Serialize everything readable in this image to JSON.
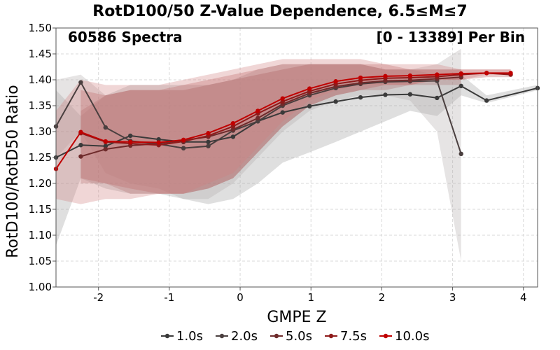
{
  "chart_data": {
    "type": "line",
    "title": "RotD100/50 Z-Value Dependence, 6.5≤M≤7",
    "annotation_left": "60586 Spectra",
    "annotation_right": "[0 - 13389] Per Bin",
    "xlabel": "GMPE Z",
    "ylabel": "RotD100/RotD50 Ratio",
    "xlim": [
      -2.6,
      4.2
    ],
    "ylim": [
      1.0,
      1.5
    ],
    "xticks": [
      -2,
      -1,
      0,
      1,
      2,
      3,
      4
    ],
    "yticks": [
      1.0,
      1.05,
      1.1,
      1.15,
      1.2,
      1.25,
      1.3,
      1.35,
      1.4,
      1.45,
      1.5
    ],
    "grid": true,
    "legend_position": "bottom",
    "series": [
      {
        "name": "1.0s",
        "color": "#3a3a3a",
        "band_color": "#9a9a9a",
        "x": [
          -2.6,
          -2.25,
          -1.9,
          -1.55,
          -1.15,
          -0.8,
          -0.45,
          -0.1,
          0.25,
          0.6,
          0.98,
          1.35,
          1.7,
          2.05,
          2.4,
          2.78,
          3.12,
          3.48,
          4.2
        ],
        "values": [
          1.25,
          1.274,
          1.272,
          1.292,
          1.285,
          1.28,
          1.28,
          1.29,
          1.32,
          1.337,
          1.349,
          1.358,
          1.366,
          1.371,
          1.372,
          1.365,
          1.388,
          1.36,
          1.384
        ],
        "lower": [
          1.08,
          1.21,
          1.19,
          1.18,
          1.18,
          1.17,
          1.16,
          1.17,
          1.2,
          1.24,
          1.26,
          1.28,
          1.3,
          1.32,
          1.34,
          1.33,
          1.37,
          1.355,
          1.38
        ],
        "upper": [
          1.38,
          1.33,
          1.37,
          1.39,
          1.39,
          1.39,
          1.39,
          1.4,
          1.42,
          1.43,
          1.43,
          1.43,
          1.43,
          1.42,
          1.42,
          1.41,
          1.41,
          1.37,
          1.39
        ]
      },
      {
        "name": "2.0s",
        "color": "#4a3f3f",
        "band_color": "#b0aaaa",
        "x": [
          -2.6,
          -2.25,
          -1.9,
          -1.55,
          -1.15,
          -0.8,
          -0.45,
          -0.1,
          0.25,
          0.6,
          0.98,
          1.35,
          1.7,
          2.05,
          2.4,
          2.78,
          3.12
        ],
        "values": [
          1.31,
          1.395,
          1.308,
          1.282,
          1.276,
          1.268,
          1.272,
          1.302,
          1.32,
          1.35,
          1.37,
          1.384,
          1.392,
          1.396,
          1.397,
          1.398,
          1.257
        ],
        "lower": [
          1.25,
          1.3,
          1.22,
          1.2,
          1.19,
          1.17,
          1.17,
          1.2,
          1.25,
          1.3,
          1.34,
          1.36,
          1.37,
          1.37,
          1.36,
          1.3,
          1.05
        ],
        "upper": [
          1.4,
          1.41,
          1.37,
          1.38,
          1.38,
          1.38,
          1.39,
          1.4,
          1.41,
          1.42,
          1.43,
          1.43,
          1.43,
          1.42,
          1.42,
          1.43,
          1.46
        ]
      },
      {
        "name": "5.0s",
        "color": "#6e2b2b",
        "band_color": "#a86c6c",
        "x": [
          -2.25,
          -1.9,
          -1.55,
          -1.15,
          -0.8,
          -0.45,
          -0.1,
          0.25,
          0.6,
          0.98,
          1.35,
          1.7,
          2.05,
          2.4,
          2.78,
          3.12
        ],
        "values": [
          1.252,
          1.266,
          1.273,
          1.277,
          1.283,
          1.29,
          1.304,
          1.326,
          1.353,
          1.374,
          1.387,
          1.394,
          1.398,
          1.399,
          1.402,
          1.405
        ],
        "lower": [
          1.2,
          1.2,
          1.18,
          1.18,
          1.18,
          1.19,
          1.21,
          1.26,
          1.31,
          1.35,
          1.37,
          1.38,
          1.38,
          1.39,
          1.39,
          1.39
        ],
        "upper": [
          1.34,
          1.37,
          1.38,
          1.38,
          1.38,
          1.39,
          1.4,
          1.41,
          1.42,
          1.43,
          1.43,
          1.43,
          1.42,
          1.42,
          1.42,
          1.42
        ]
      },
      {
        "name": "7.5s",
        "color": "#8e1a1a",
        "band_color": "#b55a5a",
        "x": [
          -2.25,
          -1.9,
          -1.55,
          -1.15,
          -0.8,
          -0.45,
          -0.1,
          0.25,
          0.6,
          0.98,
          1.35,
          1.7,
          2.05,
          2.4,
          2.78,
          3.12,
          3.48,
          3.82
        ],
        "values": [
          1.297,
          1.28,
          1.277,
          1.274,
          1.281,
          1.292,
          1.31,
          1.335,
          1.358,
          1.378,
          1.392,
          1.399,
          1.403,
          1.404,
          1.406,
          1.41,
          1.413,
          1.41
        ],
        "lower": [
          1.21,
          1.2,
          1.19,
          1.18,
          1.18,
          1.19,
          1.21,
          1.26,
          1.31,
          1.35,
          1.37,
          1.38,
          1.39,
          1.39,
          1.4,
          1.4,
          1.405,
          1.405
        ],
        "upper": [
          1.38,
          1.37,
          1.38,
          1.38,
          1.39,
          1.4,
          1.41,
          1.42,
          1.43,
          1.43,
          1.43,
          1.43,
          1.43,
          1.42,
          1.42,
          1.42,
          1.42,
          1.42
        ]
      },
      {
        "name": "10.0s",
        "color": "#c00000",
        "band_color": "#d08080",
        "x": [
          -2.6,
          -2.25,
          -1.9,
          -1.55,
          -1.15,
          -0.8,
          -0.45,
          -0.1,
          0.25,
          0.6,
          0.98,
          1.35,
          1.7,
          2.05,
          2.4,
          2.78,
          3.12,
          3.48,
          3.82
        ],
        "values": [
          1.228,
          1.299,
          1.281,
          1.28,
          1.279,
          1.284,
          1.297,
          1.316,
          1.34,
          1.364,
          1.383,
          1.397,
          1.404,
          1.407,
          1.408,
          1.41,
          1.412,
          1.413,
          1.413
        ],
        "lower": [
          1.17,
          1.16,
          1.17,
          1.17,
          1.18,
          1.18,
          1.2,
          1.22,
          1.27,
          1.32,
          1.36,
          1.38,
          1.39,
          1.39,
          1.39,
          1.4,
          1.4,
          1.41,
          1.41
        ],
        "upper": [
          1.34,
          1.4,
          1.39,
          1.39,
          1.39,
          1.4,
          1.41,
          1.42,
          1.43,
          1.44,
          1.44,
          1.44,
          1.44,
          1.43,
          1.43,
          1.43,
          1.42,
          1.42,
          1.42
        ]
      }
    ]
  }
}
